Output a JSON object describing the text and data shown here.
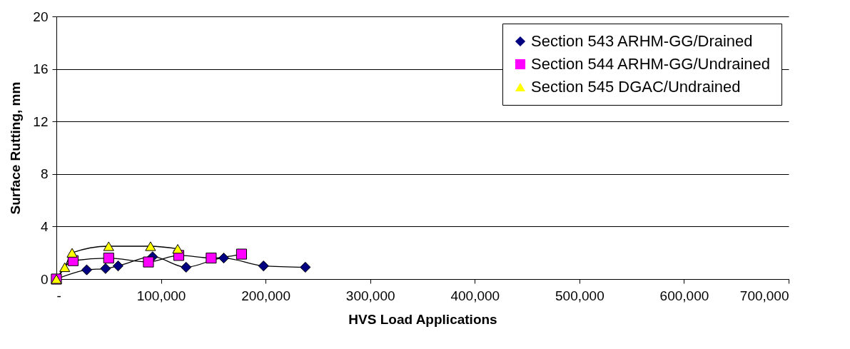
{
  "chart_data": {
    "type": "line",
    "xlabel": "HVS Load Applications",
    "ylabel": "Surface Rutting, mm",
    "xlim": [
      0,
      700000
    ],
    "xticks": [
      {
        "value": 0,
        "label": "-"
      },
      {
        "value": 100000,
        "label": "100,000"
      },
      {
        "value": 200000,
        "label": "200,000"
      },
      {
        "value": 300000,
        "label": "300,000"
      },
      {
        "value": 400000,
        "label": "400,000"
      },
      {
        "value": 500000,
        "label": "500,000"
      },
      {
        "value": 600000,
        "label": "600,000"
      },
      {
        "value": 700000,
        "label": "700,000"
      }
    ],
    "ylim": [
      0,
      20
    ],
    "yticks": [
      0,
      4,
      8,
      12,
      16,
      20
    ],
    "grid": "y",
    "legend": "top right",
    "series": [
      {
        "name": "Section 543 ARHM-GG/Drained",
        "color": "#000080",
        "marker": "diamond",
        "x": [
          0,
          29000,
          47000,
          59000,
          92000,
          124000,
          160000,
          198000,
          238000
        ],
        "values": [
          0,
          0.7,
          0.8,
          1.0,
          1.7,
          0.9,
          1.6,
          1.0,
          0.9
        ]
      },
      {
        "name": "Section 544 ARHM-GG/Undrained",
        "color": "#ff00ff",
        "marker": "square",
        "x": [
          0,
          16000,
          50000,
          88000,
          117000,
          148000,
          177000
        ],
        "values": [
          0,
          1.4,
          1.6,
          1.3,
          1.8,
          1.6,
          1.9
        ]
      },
      {
        "name": "Section 545 DGAC/Undrained",
        "color": "#ffff00",
        "marker": "triangle",
        "x": [
          0,
          8000,
          15000,
          50000,
          90000,
          116000
        ],
        "values": [
          0,
          0.9,
          2.0,
          2.5,
          2.5,
          2.3
        ]
      }
    ]
  }
}
